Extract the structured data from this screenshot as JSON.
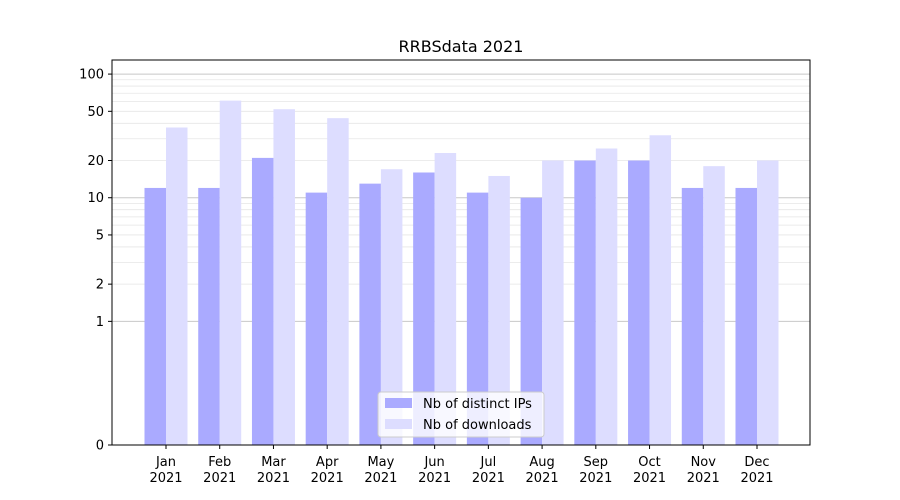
{
  "chart_data": {
    "type": "bar",
    "title": "RRBSdata 2021",
    "xlabel": "",
    "ylabel": "",
    "y_scale": "symlog",
    "ylim": [
      0,
      130
    ],
    "y_ticks": [
      0,
      1,
      2,
      5,
      10,
      20,
      50,
      100
    ],
    "y_tick_labels": [
      "0",
      "1",
      "2",
      "5",
      "10",
      "20",
      "50",
      "100"
    ],
    "grid": true,
    "legend_position": "bottom-center",
    "categories": [
      {
        "month": "Jan",
        "year": "2021"
      },
      {
        "month": "Feb",
        "year": "2021"
      },
      {
        "month": "Mar",
        "year": "2021"
      },
      {
        "month": "Apr",
        "year": "2021"
      },
      {
        "month": "May",
        "year": "2021"
      },
      {
        "month": "Jun",
        "year": "2021"
      },
      {
        "month": "Jul",
        "year": "2021"
      },
      {
        "month": "Aug",
        "year": "2021"
      },
      {
        "month": "Sep",
        "year": "2021"
      },
      {
        "month": "Oct",
        "year": "2021"
      },
      {
        "month": "Nov",
        "year": "2021"
      },
      {
        "month": "Dec",
        "year": "2021"
      }
    ],
    "series": [
      {
        "name": "Nb of distinct IPs",
        "color": "#aaaaff",
        "values": [
          12,
          12,
          21,
          11,
          13,
          16,
          11,
          10,
          20,
          20,
          12,
          12
        ]
      },
      {
        "name": "Nb of downloads",
        "color": "#ddddff",
        "values": [
          37,
          61,
          52,
          44,
          17,
          23,
          15,
          20,
          25,
          32,
          18,
          20
        ]
      }
    ]
  }
}
